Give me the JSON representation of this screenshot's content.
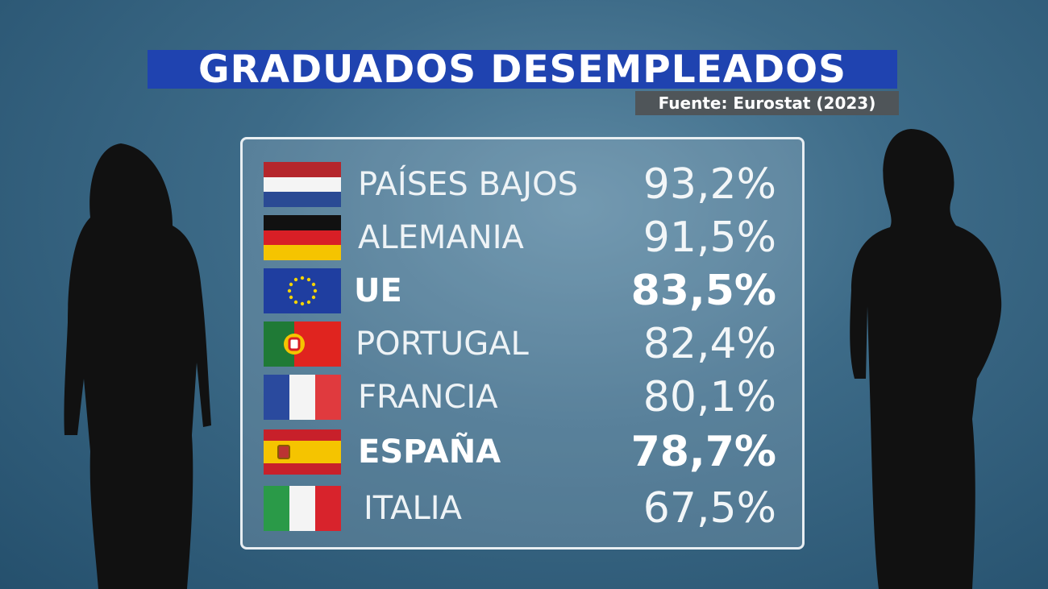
{
  "header": {
    "title": "GRADUADOS DESEMPLEADOS",
    "source": "Fuente: Eurostat (2023)"
  },
  "table": {
    "rows": [
      [
        "PAÍSES BAJOS",
        "93,2%"
      ],
      [
        "ALEMANIA",
        "91,5%"
      ],
      [
        "UE",
        "83,5%"
      ],
      [
        "PORTUGAL",
        "82,4%"
      ],
      [
        "FRANCIA",
        "80,1%"
      ],
      [
        "ESPAÑA",
        "78,7%"
      ],
      [
        "ITALIA",
        "67,5%"
      ]
    ]
  }
}
